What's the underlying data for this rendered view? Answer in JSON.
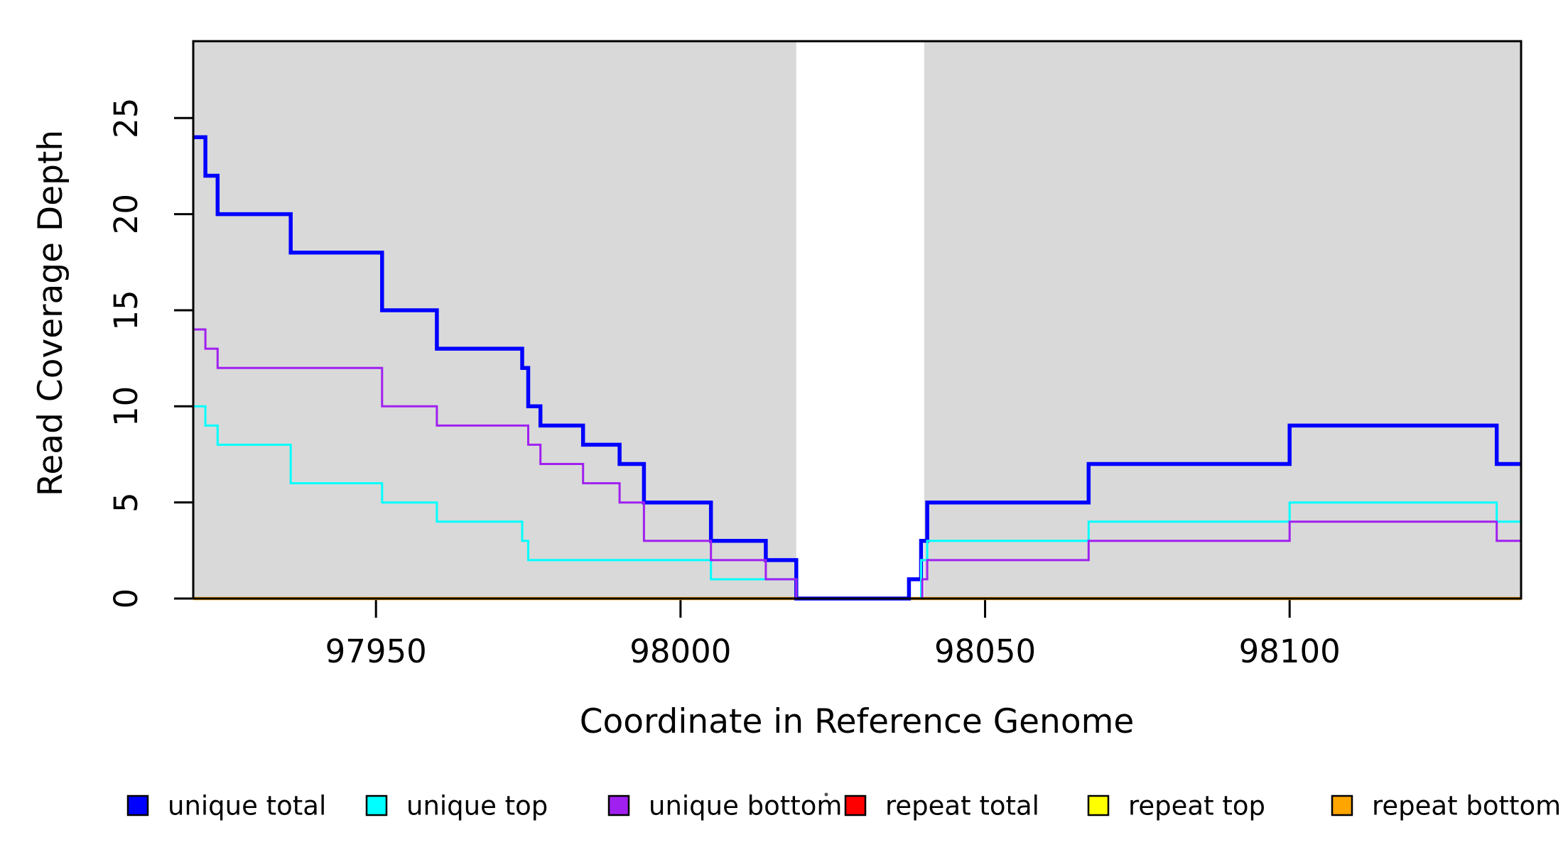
{
  "chart_data": {
    "type": "line",
    "subtype": "step-after",
    "title": "",
    "xlabel": "Coordinate in Reference Genome",
    "ylabel": "Read Coverage Depth",
    "xlim": [
      97920,
      98138
    ],
    "ylim": [
      0,
      29
    ],
    "x_ticks": [
      97950,
      98000,
      98050,
      98100
    ],
    "y_ticks": [
      0,
      5,
      10,
      15,
      20,
      25
    ],
    "grid": false,
    "legend_position": "bottom",
    "plot_border_color": "#000000",
    "shaded_region_color": "#d9d9d9",
    "shaded_regions": [
      {
        "name": "left-coverage-block",
        "from": 97920,
        "to": 98019
      },
      {
        "name": "right-coverage-block",
        "from": 98040,
        "to": 98138
      }
    ],
    "series": [
      {
        "name": "unique total",
        "color": "#0000ff",
        "line_width": 5.5,
        "points": [
          [
            97920,
            24
          ],
          [
            97922,
            22
          ],
          [
            97924,
            20
          ],
          [
            97936,
            18
          ],
          [
            97951,
            15
          ],
          [
            97960,
            13
          ],
          [
            97974,
            12
          ],
          [
            97975,
            10
          ],
          [
            97977,
            9
          ],
          [
            97984,
            8
          ],
          [
            97990,
            7
          ],
          [
            97994,
            5
          ],
          [
            98005,
            3
          ],
          [
            98014,
            2
          ],
          [
            98019,
            0
          ],
          [
            98037.5,
            1
          ],
          [
            98039.5,
            3
          ],
          [
            98040.5,
            5
          ],
          [
            98067,
            7
          ],
          [
            98100,
            9
          ],
          [
            98134,
            7
          ]
        ]
      },
      {
        "name": "unique top",
        "color": "#00ffff",
        "line_width": 3,
        "points": [
          [
            97920,
            10
          ],
          [
            97922,
            9
          ],
          [
            97924,
            8
          ],
          [
            97936,
            6
          ],
          [
            97951,
            5
          ],
          [
            97960,
            4
          ],
          [
            97974,
            3
          ],
          [
            97975,
            2
          ],
          [
            98005,
            1
          ],
          [
            98019,
            0
          ],
          [
            98039.5,
            2
          ],
          [
            98040.5,
            3
          ],
          [
            98067,
            4
          ],
          [
            98100,
            5
          ],
          [
            98134,
            4
          ]
        ]
      },
      {
        "name": "unique bottom",
        "color": "#a020f0",
        "line_width": 3,
        "points": [
          [
            97920,
            14
          ],
          [
            97922,
            13
          ],
          [
            97924,
            12
          ],
          [
            97951,
            10
          ],
          [
            97960,
            9
          ],
          [
            97975,
            8
          ],
          [
            97977,
            7
          ],
          [
            97984,
            6
          ],
          [
            97990,
            5
          ],
          [
            97994,
            3
          ],
          [
            98005,
            2
          ],
          [
            98014,
            1
          ],
          [
            98019,
            0
          ],
          [
            98039.7,
            1
          ],
          [
            98040.5,
            2
          ],
          [
            98067,
            3
          ],
          [
            98100,
            4
          ],
          [
            98134,
            3
          ]
        ]
      },
      {
        "name": "repeat total",
        "color": "#ff0000",
        "line_width": 3,
        "points": [
          [
            97920,
            0
          ]
        ]
      },
      {
        "name": "repeat top",
        "color": "#ffff00",
        "line_width": 3,
        "points": [
          [
            97920,
            0
          ]
        ]
      },
      {
        "name": "repeat bottom",
        "color": "#ffa500",
        "line_width": 4.5,
        "points": [
          [
            97920,
            0
          ]
        ]
      }
    ],
    "draw_order": [
      "repeat total",
      "repeat top",
      "repeat bottom",
      "unique total",
      "unique top",
      "unique bottom"
    ]
  },
  "legend": {
    "entries": [
      {
        "label": "unique total",
        "color": "#0000ff"
      },
      {
        "label": "unique top",
        "color": "#00ffff"
      },
      {
        "label": "unique bottom",
        "color": "#a020f0"
      },
      {
        "label": "repeat total",
        "color": "#ff0000"
      },
      {
        "label": "repeat top",
        "color": "#ffff00"
      },
      {
        "label": "repeat bottom",
        "color": "#ffa500"
      }
    ]
  }
}
